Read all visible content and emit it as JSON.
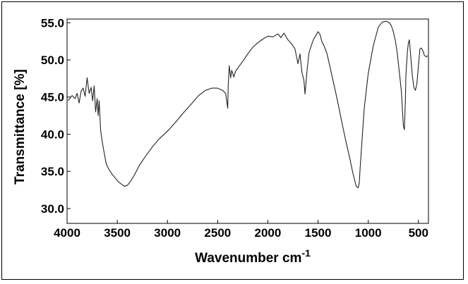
{
  "chart_data": {
    "type": "line",
    "title": "",
    "xlabel": "Wavenumber cm",
    "xlabel_superscript": "-1",
    "ylabel": "Transmittance [%]",
    "xlim": [
      4000,
      400
    ],
    "ylim": [
      28,
      55.5
    ],
    "x_reversed": true,
    "grid": false,
    "xticks": [
      4000,
      3500,
      3000,
      2500,
      2000,
      1500,
      1000,
      500
    ],
    "xtick_labels": [
      "4000",
      "3500",
      "3000",
      "2500",
      "2000",
      "1500",
      "1000",
      "500"
    ],
    "yticks": [
      30,
      35,
      40,
      45,
      50,
      55
    ],
    "ytick_labels": [
      "30.0",
      "35.0",
      "40.0",
      "45.0",
      "50.0",
      "55.0"
    ],
    "series": [
      {
        "color": "#222222",
        "x": [
          3990,
          3950,
          3920,
          3900,
          3880,
          3860,
          3840,
          3820,
          3800,
          3780,
          3760,
          3745,
          3730,
          3715,
          3700,
          3690,
          3680,
          3665,
          3650,
          3630,
          3610,
          3580,
          3550,
          3520,
          3490,
          3460,
          3430,
          3400,
          3370,
          3330,
          3280,
          3220,
          3150,
          3080,
          3000,
          2920,
          2840,
          2760,
          2690,
          2620,
          2560,
          2500,
          2450,
          2420,
          2400,
          2395,
          2385,
          2370,
          2360,
          2350,
          2340,
          2320,
          2300,
          2250,
          2200,
          2150,
          2100,
          2050,
          2000,
          1950,
          1900,
          1870,
          1840,
          1800,
          1760,
          1730,
          1700,
          1680,
          1660,
          1640,
          1630,
          1610,
          1590,
          1560,
          1540,
          1520,
          1500,
          1480,
          1460,
          1440,
          1410,
          1380,
          1340,
          1300,
          1260,
          1220,
          1180,
          1150,
          1120,
          1100,
          1090,
          1080,
          1060,
          1040,
          1000,
          950,
          900,
          860,
          820,
          790,
          770,
          750,
          730,
          710,
          690,
          670,
          650,
          640,
          630,
          625,
          610,
          600,
          590,
          575,
          560,
          545,
          530,
          515,
          500,
          485,
          470,
          455,
          440,
          420,
          410
        ],
        "y": [
          44.5,
          45.2,
          44.8,
          45.5,
          44.2,
          45.8,
          46.2,
          45.1,
          47.6,
          45.5,
          46.3,
          44.5,
          46.5,
          43.0,
          44.8,
          42.5,
          44.5,
          40.5,
          39.0,
          37.5,
          36.0,
          35.2,
          34.6,
          34.1,
          33.6,
          33.3,
          33.0,
          33.1,
          33.6,
          34.5,
          35.8,
          37.0,
          38.3,
          39.4,
          40.4,
          41.6,
          42.9,
          44.1,
          45.2,
          45.9,
          46.2,
          46.2,
          45.9,
          45.5,
          43.5,
          46.5,
          49.2,
          47.6,
          48.6,
          48.2,
          47.7,
          48.5,
          48.9,
          49.8,
          50.8,
          51.7,
          52.3,
          52.8,
          53.2,
          53.1,
          53.5,
          53.0,
          53.6,
          52.7,
          52.1,
          51.5,
          49.5,
          50.8,
          48.3,
          47.2,
          45.4,
          48.5,
          51.0,
          52.2,
          52.9,
          53.3,
          53.8,
          53.4,
          52.4,
          51.9,
          50.8,
          49.0,
          46.6,
          44.1,
          41.4,
          38.9,
          36.5,
          34.6,
          33.0,
          32.8,
          33.4,
          35.6,
          39.5,
          43.5,
          48.2,
          51.9,
          54.4,
          55.1,
          55.2,
          55.0,
          54.6,
          53.8,
          52.6,
          50.8,
          48.3,
          45.8,
          41.2,
          40.6,
          44.5,
          47.8,
          51.1,
          52.3,
          52.7,
          50.2,
          47.8,
          46.3,
          45.9,
          46.8,
          49.2,
          51.5,
          51.6,
          51.2,
          50.6,
          50.4,
          50.6
        ]
      }
    ]
  }
}
